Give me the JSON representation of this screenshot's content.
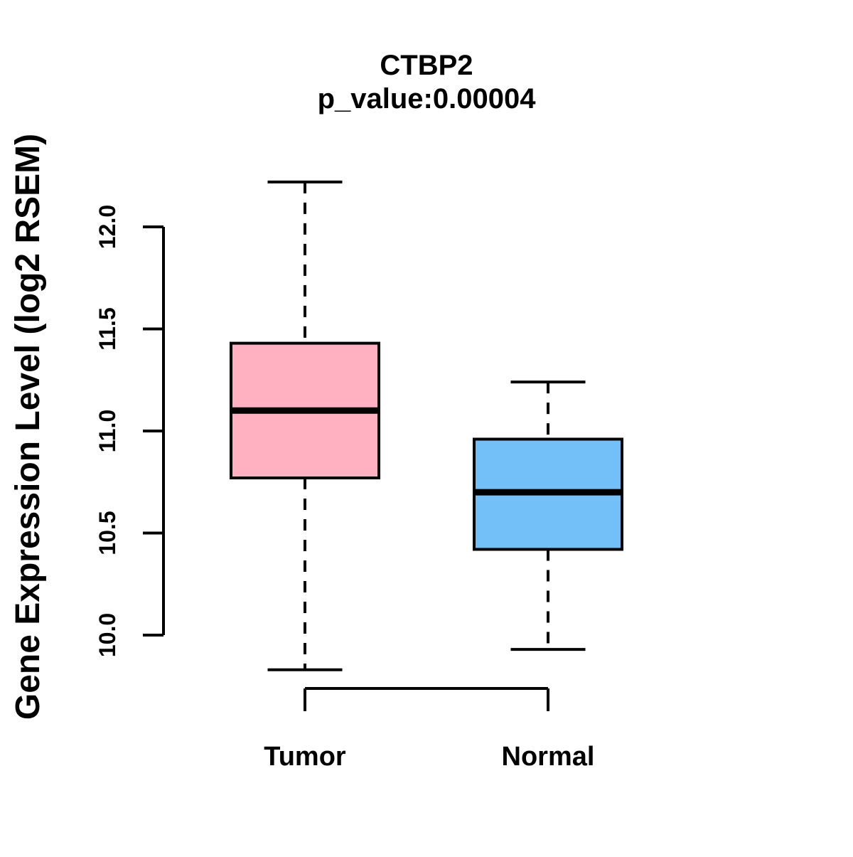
{
  "figure": {
    "title": "CTBP2",
    "subtitle": "p_value:0.00004"
  },
  "chart_data": {
    "type": "boxplot",
    "title": "CTBP2",
    "subtitle": "p_value:0.00004",
    "xlabel": "",
    "ylabel": "Gene Expression Level (log2 RSEM)",
    "categories": [
      "Tumor",
      "Normal"
    ],
    "ytick_labels": [
      "10.0",
      "10.5",
      "11.0",
      "11.5",
      "12.0"
    ],
    "yticks": [
      10.0,
      10.5,
      11.0,
      11.5,
      12.0
    ],
    "ylim": [
      9.75,
      12.3
    ],
    "grid": false,
    "legend": "none",
    "series": [
      {
        "name": "Tumor",
        "fill_color": "#FFB1C1",
        "lower_whisker": 9.83,
        "q1": 10.77,
        "median": 11.1,
        "q3": 11.43,
        "upper_whisker": 12.22
      },
      {
        "name": "Normal",
        "fill_color": "#73BFF7",
        "lower_whisker": 9.93,
        "q1": 10.42,
        "median": 10.7,
        "q3": 10.96,
        "upper_whisker": 11.24
      }
    ],
    "line_color": "#000000",
    "background": "#FFFFFF"
  }
}
